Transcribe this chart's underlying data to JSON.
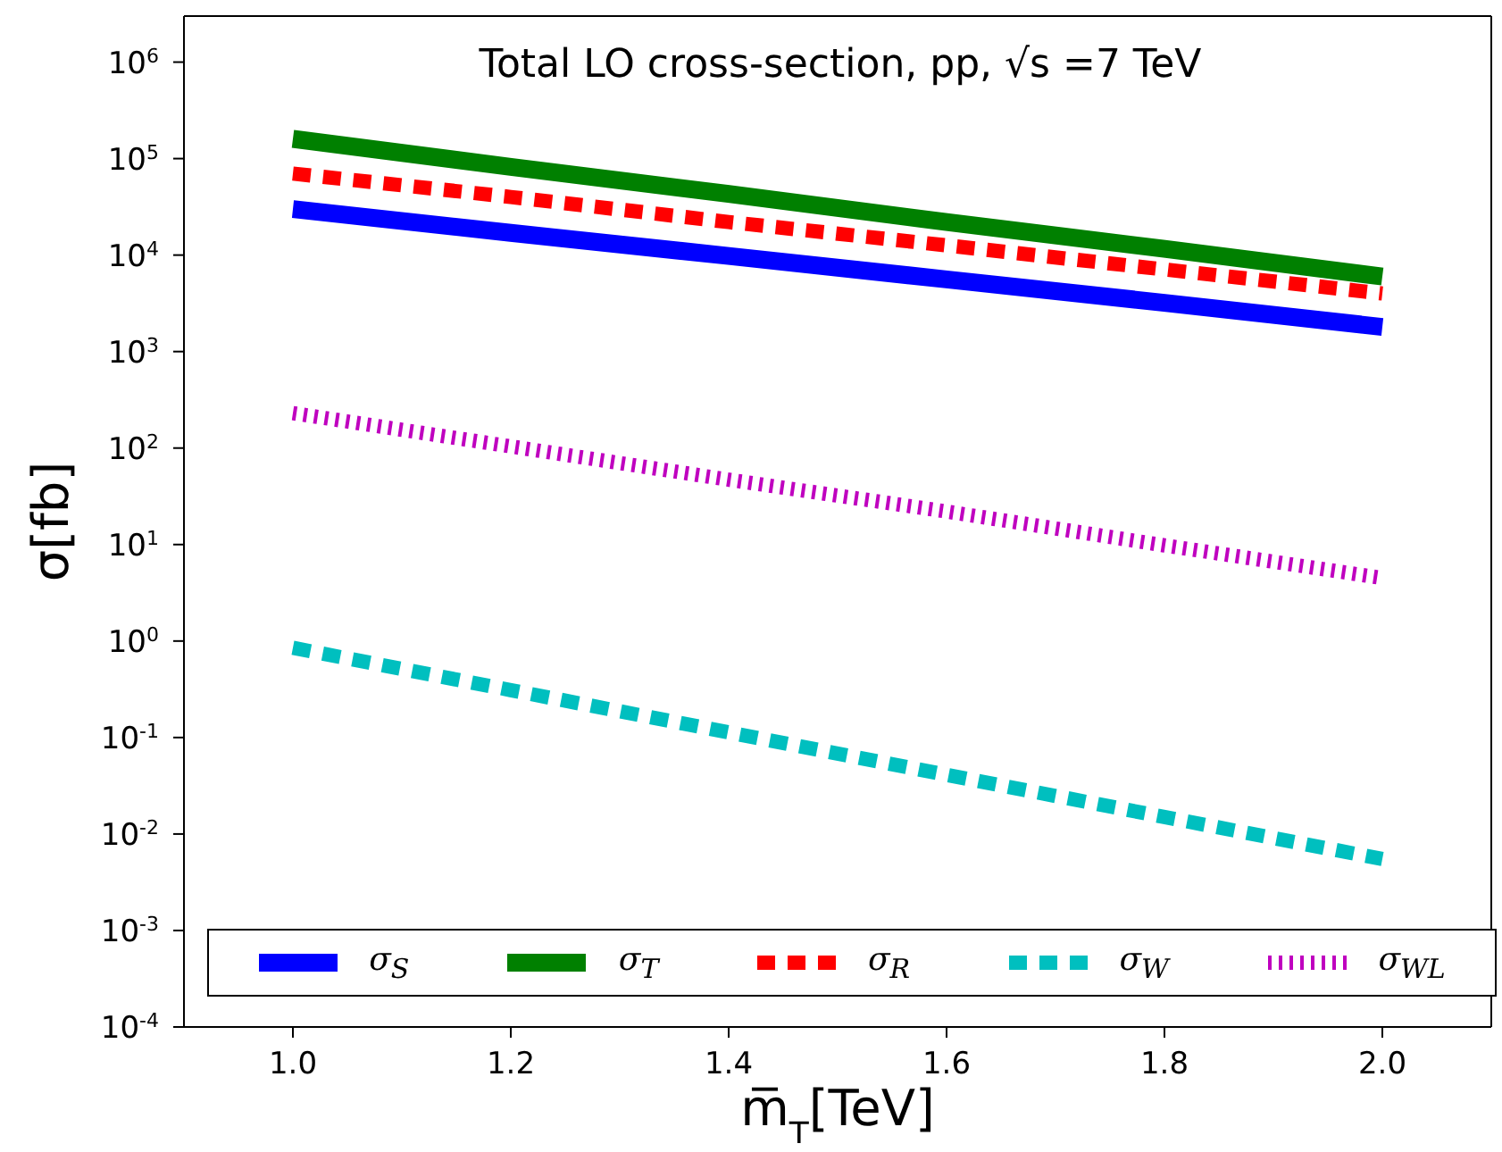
{
  "chart_data": {
    "type": "line",
    "title": "Total LO cross-section, pp, √s =7 TeV",
    "xlabel": "m̅$_{T}$[TeV]",
    "ylabel": "σ[fb]",
    "log": "y",
    "grid": false,
    "legend": "bottom",
    "marker": "none",
    "x": [
      1.0,
      1.2,
      1.4,
      1.6,
      1.8,
      2.0
    ],
    "xlim": [
      0.9,
      2.1
    ],
    "xticks": [
      {
        "value": 1.0,
        "label": "1.0"
      },
      {
        "value": 1.2,
        "label": "1.2"
      },
      {
        "value": 1.4,
        "label": "1.4"
      },
      {
        "value": 1.6,
        "label": "1.6"
      },
      {
        "value": 1.8,
        "label": "1.8"
      },
      {
        "value": 2.0,
        "label": "2.0"
      }
    ],
    "ylim": [
      0.0001,
      3000000
    ],
    "yticks": [
      {
        "value": 0.0001,
        "label": "10$^{-4}$"
      },
      {
        "value": 0.001,
        "label": "10$^{-3}$"
      },
      {
        "value": 0.01,
        "label": "10$^{-2}$"
      },
      {
        "value": 0.1,
        "label": "10$^{-1}$"
      },
      {
        "value": 1,
        "label": "10$^{0}$"
      },
      {
        "value": 10,
        "label": "10$^{1}$"
      },
      {
        "value": 100,
        "label": "10$^{2}$"
      },
      {
        "value": 1000,
        "label": "10$^{3}$"
      },
      {
        "value": 10000,
        "label": "10$^{4}$"
      },
      {
        "value": 100000,
        "label": "10$^{5}$"
      },
      {
        "value": 1000000,
        "label": "10$^{6}$"
      }
    ],
    "series": [
      {
        "name": "σ$_{S}$",
        "color": "#0000ff",
        "line_style": "solid",
        "values": [
          30000,
          17000,
          9800,
          5600,
          3200,
          1800
        ]
      },
      {
        "name": "σ$_{T}$",
        "color": "#008000",
        "line_style": "solid",
        "values": [
          160000,
          82000,
          43000,
          22000,
          11600,
          6000
        ]
      },
      {
        "name": "σ$_{R}$",
        "color": "#ff0000",
        "line_style": "dashed",
        "values": [
          70000,
          40000,
          22000,
          12600,
          7100,
          4000
        ]
      },
      {
        "name": "σ$_{W}$",
        "color": "#00bfbf",
        "line_style": "dashed",
        "values": [
          0.85,
          0.31,
          0.113,
          0.041,
          0.015,
          0.0055
        ]
      },
      {
        "name": "σ$_{WL}$",
        "color": "#bf00bf",
        "line_style": "dotted",
        "values": [
          230,
          104,
          47,
          22,
          9.8,
          4.5
        ]
      }
    ]
  }
}
